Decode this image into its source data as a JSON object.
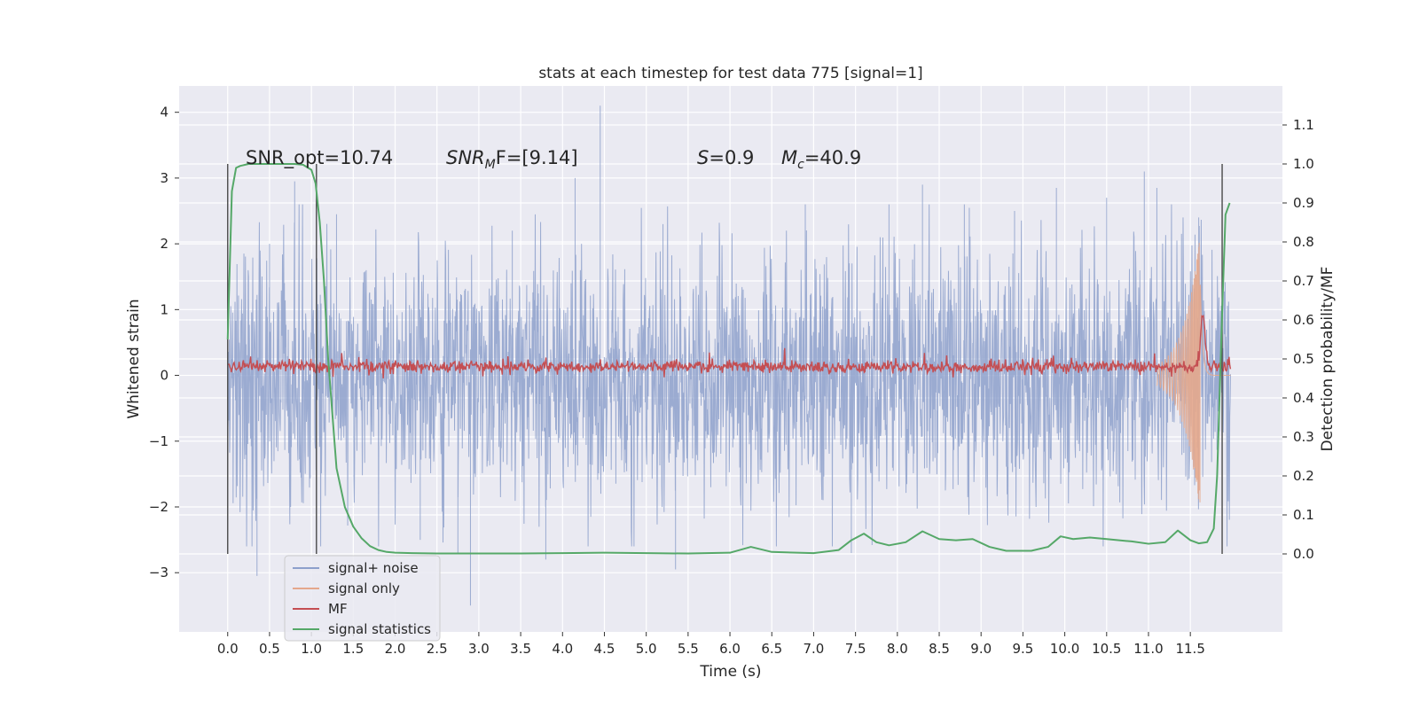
{
  "chart_data": {
    "type": "line",
    "title": "stats at each timestep for test data 775 [signal=1]",
    "xlabel": "Time (s)",
    "ylabel_left": "Whitened strain",
    "ylabel_right": "Detection probability/MF",
    "xlim": [
      -0.58,
      12.6
    ],
    "ylim_left": [
      -3.9,
      4.4
    ],
    "ylim_right": [
      -0.2,
      1.2
    ],
    "x_ticks": [
      "0.0",
      "0.5",
      "1.0",
      "1.5",
      "2.0",
      "2.5",
      "3.0",
      "3.5",
      "4.0",
      "4.5",
      "5.0",
      "5.5",
      "6.0",
      "6.5",
      "7.0",
      "7.5",
      "8.0",
      "8.5",
      "9.0",
      "9.5",
      "10.0",
      "10.5",
      "11.0",
      "11.5"
    ],
    "y_ticks_left": [
      "−3",
      "−2",
      "−1",
      "0",
      "1",
      "2",
      "3",
      "4"
    ],
    "y_ticks_right": [
      "0.0",
      "0.1",
      "0.2",
      "0.3",
      "0.4",
      "0.5",
      "0.6",
      "0.7",
      "0.8",
      "0.9",
      "1.0",
      "1.1"
    ],
    "grid": true,
    "legend_position": "lower-left",
    "annotations": {
      "snr_opt": "SNR_opt=10.74",
      "snr_mf_main": "SNR",
      "snr_mf_sub": "M",
      "snr_mf_tail": "F=[9.14]",
      "s_main": "S",
      "s_tail": "=0.9",
      "mc_main": "M",
      "mc_sub": "c",
      "mc_tail": "=40.9"
    },
    "vertical_lines_x": [
      0.0,
      1.06,
      11.88
    ],
    "colors": {
      "signal_noise": "#8da0cb",
      "signal_only": "#e5a88c",
      "mf": "#c44e52",
      "signal_statistics": "#55a868",
      "vline": "#4a4a4a",
      "plot_bg": "#eaeaf2",
      "grid": "#ffffff"
    },
    "series": [
      {
        "name": "signal+ noise",
        "axis": "left",
        "x_range": [
          0.0,
          11.98
        ],
        "envelope_typical": [
          -1.5,
          1.5
        ],
        "peaks_x": [
          0.35,
          0.5,
          0.8,
          1.3,
          2.3,
          2.75,
          2.9,
          3.4,
          3.8,
          4.15,
          4.45,
          5.2,
          5.35,
          6.9,
          7.45,
          7.9,
          8.3,
          8.8,
          9.4,
          9.9,
          10.5,
          10.95,
          11.1,
          11.6
        ],
        "peaks_y": [
          -3.05,
          2.0,
          2.95,
          2.45,
          -2.5,
          -2.7,
          -3.5,
          2.2,
          -2.8,
          3.0,
          4.1,
          2.3,
          -2.95,
          2.6,
          -2.7,
          2.6,
          2.9,
          2.6,
          2.5,
          2.85,
          2.7,
          3.1,
          2.85,
          2.4
        ]
      },
      {
        "name": "signal only",
        "axis": "left",
        "x_range": [
          11.1,
          11.98
        ],
        "peak_amplitude": 2.2,
        "peak_x": 11.62
      },
      {
        "name": "MF",
        "axis": "right",
        "x_range": [
          0.0,
          11.98
        ],
        "baseline": 0.48,
        "peak_x": 11.65,
        "peak_y": 0.62
      },
      {
        "name": "signal statistics",
        "axis": "right",
        "x": [
          0.0,
          0.05,
          0.1,
          0.15,
          0.25,
          0.4,
          0.6,
          0.8,
          0.9,
          1.0,
          1.05,
          1.1,
          1.15,
          1.2,
          1.3,
          1.4,
          1.5,
          1.6,
          1.7,
          1.8,
          1.9,
          2.0,
          2.2,
          2.5,
          3.0,
          3.5,
          4.0,
          4.5,
          5.0,
          5.5,
          6.0,
          6.25,
          6.5,
          7.0,
          7.3,
          7.45,
          7.6,
          7.75,
          7.9,
          8.1,
          8.3,
          8.5,
          8.7,
          8.9,
          9.1,
          9.3,
          9.6,
          9.8,
          9.95,
          10.1,
          10.3,
          10.5,
          10.8,
          11.0,
          11.2,
          11.35,
          11.5,
          11.6,
          11.7,
          11.78,
          11.82,
          11.88,
          11.92,
          11.97
        ],
        "y": [
          0.55,
          0.93,
          0.99,
          0.995,
          1.0,
          1.0,
          1.0,
          1.0,
          0.998,
          0.985,
          0.95,
          0.85,
          0.7,
          0.5,
          0.22,
          0.12,
          0.07,
          0.04,
          0.02,
          0.01,
          0.005,
          0.003,
          0.002,
          0.001,
          0.001,
          0.001,
          0.002,
          0.003,
          0.002,
          0.001,
          0.003,
          0.018,
          0.005,
          0.002,
          0.01,
          0.035,
          0.052,
          0.03,
          0.022,
          0.03,
          0.058,
          0.038,
          0.035,
          0.038,
          0.018,
          0.008,
          0.008,
          0.018,
          0.045,
          0.038,
          0.042,
          0.038,
          0.032,
          0.026,
          0.03,
          0.06,
          0.035,
          0.027,
          0.03,
          0.065,
          0.2,
          0.62,
          0.87,
          0.9
        ]
      }
    ]
  }
}
